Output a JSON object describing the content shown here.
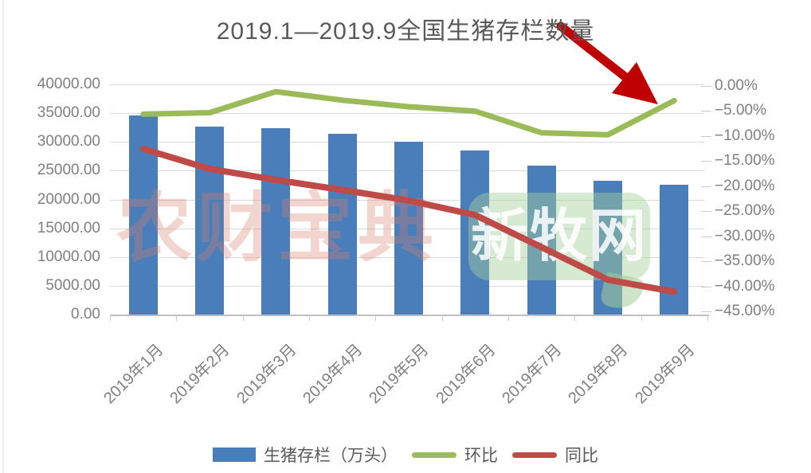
{
  "title": "2019.1—2019.9全国生猪存栏数量",
  "watermarks": {
    "pink_text": "农财宝典",
    "green_text": "新牧网"
  },
  "legend": [
    {
      "label": "生猪存栏（万头）",
      "swatch": "bar",
      "color": "#4A7EBB"
    },
    {
      "label": "环比",
      "swatch": "line",
      "color": "#9BBB59"
    },
    {
      "label": "同比",
      "swatch": "line",
      "color": "#BE4B48"
    }
  ],
  "colors": {
    "bar": "#4A7EBB",
    "mom_line": "#9BBB59",
    "yoy_line": "#BE4B48",
    "arrow": "#C00000",
    "gridline": "#D9D9D9",
    "axis": "#BFBFBF",
    "axis_text": "#7F7F7F",
    "title_text": "#595959",
    "watermark_pink": "#D9816C",
    "watermark_green": "#A4CE98"
  },
  "chart_data": {
    "type": "bar",
    "title": "2019.1—2019.9全国生猪存栏数量",
    "categories": [
      "2019年1月",
      "2019年2月",
      "2019年3月",
      "2019年4月",
      "2019年5月",
      "2019年6月",
      "2019年7月",
      "2019年8月",
      "2019年9月"
    ],
    "bar_series": {
      "name": "生猪存栏（万头）",
      "axis": "left",
      "unit": "万头",
      "color": "#4A7EBB",
      "values": [
        34580,
        32710,
        32320,
        31380,
        30060,
        28530,
        25850,
        23320,
        22620
      ]
    },
    "line_series": [
      {
        "name": "环比",
        "axis": "right",
        "unit": "%",
        "color": "#9BBB59",
        "values": [
          -5.7,
          -5.4,
          -1.2,
          -2.9,
          -4.2,
          -5.1,
          -9.4,
          -9.8,
          -3.0
        ]
      },
      {
        "name": "同比",
        "axis": "right",
        "unit": "%",
        "color": "#BE4B48",
        "values": [
          -12.6,
          -16.6,
          -18.8,
          -20.8,
          -22.9,
          -25.8,
          -32.2,
          -38.7,
          -41.1
        ]
      }
    ],
    "left_axis": {
      "min": 0,
      "max": 40000,
      "step": 5000,
      "tick_labels": [
        "40000.00",
        "35000.00",
        "30000.00",
        "25000.00",
        "20000.00",
        "15000.00",
        "10000.00",
        "5000.00",
        "0.00"
      ]
    },
    "right_axis": {
      "min": -45,
      "max": 0,
      "step": 5,
      "tick_labels": [
        "0.00%",
        "−5.00%",
        "−10.00%",
        "−15.00%",
        "−20.00%",
        "−25.00%",
        "−30.00%",
        "−35.00%",
        "−40.00%",
        "−45.00%"
      ]
    },
    "grid": "horizontal",
    "legend_position": "bottom",
    "annotation": {
      "type": "arrow",
      "color": "#C00000",
      "points_to": "环比 2019年9月 uptick"
    }
  }
}
